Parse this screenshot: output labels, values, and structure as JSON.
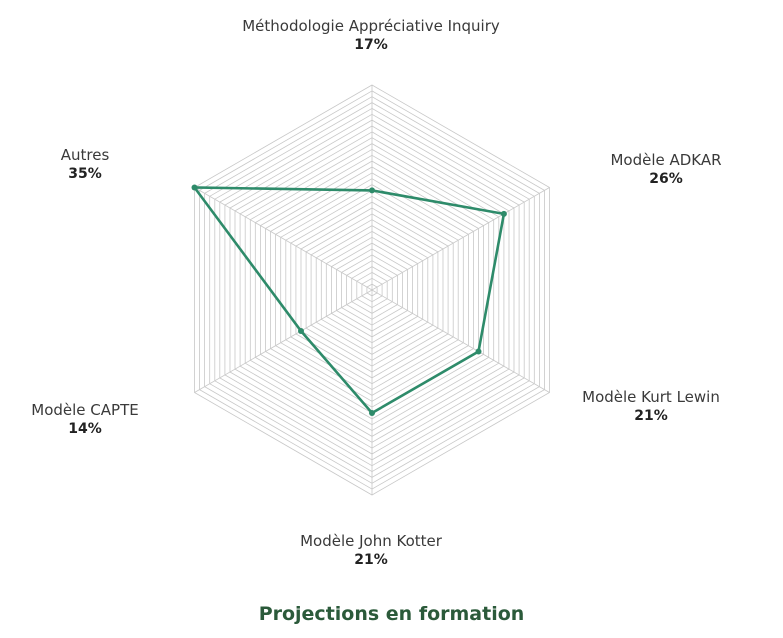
{
  "chart_data": {
    "type": "radar",
    "title": "Projections en formation",
    "categories": [
      "Méthodologie Appréciative Inquiry",
      "Modèle ADKAR",
      "Modèle Kurt Lewin",
      "Modèle John Kotter",
      "Modèle CAPTE",
      "Autres"
    ],
    "series": [
      {
        "values": [
          17,
          26,
          21,
          21,
          14,
          35
        ],
        "color": "#2e8b6a"
      }
    ],
    "value_labels": [
      "17%",
      "26%",
      "21%",
      "21%",
      "14%",
      "35%"
    ],
    "range": [
      0,
      35
    ],
    "grid": true,
    "grid_color": "#c8c8c8",
    "title_color": "#2b5a3a"
  }
}
